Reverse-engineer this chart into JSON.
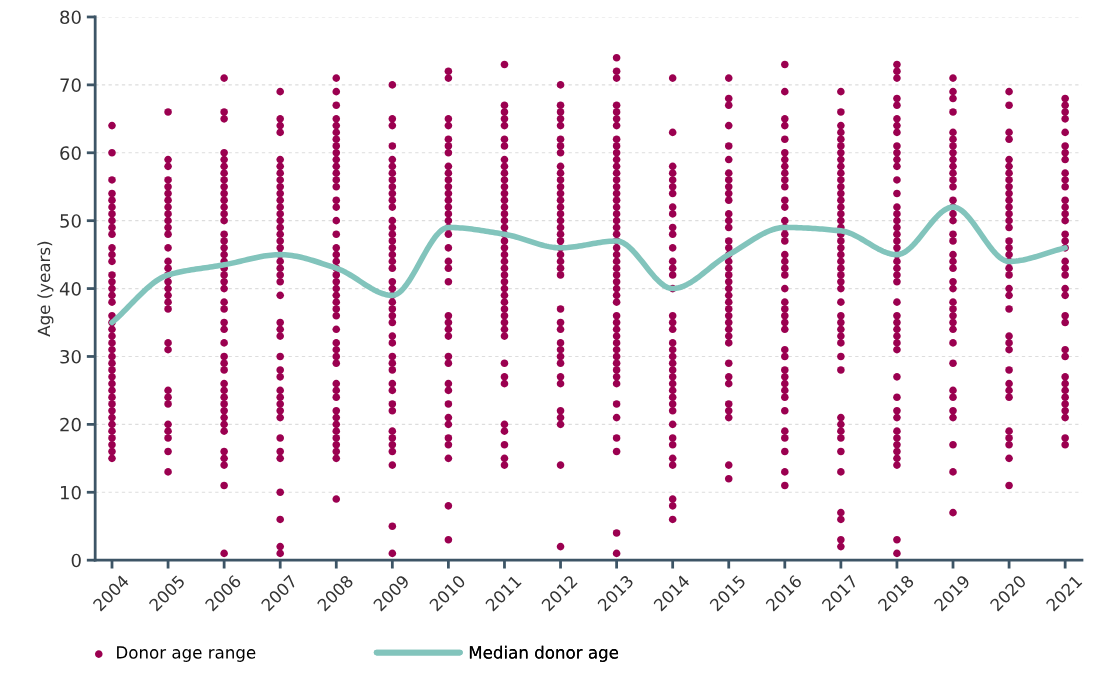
{
  "chart_data": {
    "type": "scatter",
    "ylabel": "Age (years)",
    "xlim": [
      2003.7,
      2021.3
    ],
    "ylim": [
      0,
      80
    ],
    "xticks": [
      2004,
      2005,
      2006,
      2007,
      2008,
      2009,
      2010,
      2011,
      2012,
      2013,
      2014,
      2015,
      2016,
      2017,
      2018,
      2019,
      2020,
      2021
    ],
    "yticks": [
      0,
      10,
      20,
      30,
      40,
      50,
      60,
      70,
      80
    ],
    "grid": "y",
    "legend": "bottom",
    "series": [
      {
        "name": "Donor age range",
        "marker": "circle",
        "color": "#9b0050",
        "x": [
          2004,
          2004,
          2004,
          2004,
          2004,
          2004,
          2004,
          2004,
          2004,
          2004,
          2004,
          2004,
          2004,
          2004,
          2004,
          2004,
          2004,
          2004,
          2004,
          2004,
          2004,
          2004,
          2004,
          2004,
          2004,
          2004,
          2004,
          2004,
          2004,
          2004,
          2004,
          2004,
          2004,
          2004,
          2004,
          2004,
          2004,
          2004,
          2004,
          2004,
          2005,
          2005,
          2005,
          2005,
          2005,
          2005,
          2005,
          2005,
          2005,
          2005,
          2005,
          2005,
          2005,
          2005,
          2005,
          2005,
          2005,
          2005,
          2005,
          2005,
          2005,
          2005,
          2005,
          2005,
          2005,
          2005,
          2005,
          2005,
          2005,
          2005,
          2005,
          2006,
          2006,
          2006,
          2006,
          2006,
          2006,
          2006,
          2006,
          2006,
          2006,
          2006,
          2006,
          2006,
          2006,
          2006,
          2006,
          2006,
          2006,
          2006,
          2006,
          2006,
          2006,
          2006,
          2006,
          2006,
          2006,
          2006,
          2006,
          2006,
          2006,
          2006,
          2006,
          2006,
          2006,
          2006,
          2006,
          2006,
          2006,
          2006,
          2006,
          2006,
          2006,
          2006,
          2006,
          2007,
          2007,
          2007,
          2007,
          2007,
          2007,
          2007,
          2007,
          2007,
          2007,
          2007,
          2007,
          2007,
          2007,
          2007,
          2007,
          2007,
          2007,
          2007,
          2007,
          2007,
          2007,
          2007,
          2007,
          2007,
          2007,
          2007,
          2007,
          2007,
          2007,
          2007,
          2007,
          2007,
          2007,
          2007,
          2007,
          2007,
          2007,
          2007,
          2007,
          2007,
          2007,
          2008,
          2008,
          2008,
          2008,
          2008,
          2008,
          2008,
          2008,
          2008,
          2008,
          2008,
          2008,
          2008,
          2008,
          2008,
          2008,
          2008,
          2008,
          2008,
          2008,
          2008,
          2008,
          2008,
          2008,
          2008,
          2008,
          2008,
          2008,
          2008,
          2008,
          2008,
          2008,
          2008,
          2008,
          2008,
          2008,
          2008,
          2008,
          2008,
          2008,
          2008,
          2008,
          2008,
          2008,
          2008,
          2008,
          2009,
          2009,
          2009,
          2009,
          2009,
          2009,
          2009,
          2009,
          2009,
          2009,
          2009,
          2009,
          2009,
          2009,
          2009,
          2009,
          2009,
          2009,
          2009,
          2009,
          2009,
          2009,
          2009,
          2009,
          2009,
          2009,
          2009,
          2009,
          2009,
          2009,
          2009,
          2009,
          2009,
          2009,
          2009,
          2009,
          2009,
          2009,
          2009,
          2009,
          2009,
          2009,
          2009,
          2010,
          2010,
          2010,
          2010,
          2010,
          2010,
          2010,
          2010,
          2010,
          2010,
          2010,
          2010,
          2010,
          2010,
          2010,
          2010,
          2010,
          2010,
          2010,
          2010,
          2010,
          2010,
          2010,
          2010,
          2010,
          2010,
          2010,
          2010,
          2010,
          2010,
          2010,
          2010,
          2010,
          2010,
          2010,
          2010,
          2010,
          2010,
          2011,
          2011,
          2011,
          2011,
          2011,
          2011,
          2011,
          2011,
          2011,
          2011,
          2011,
          2011,
          2011,
          2011,
          2011,
          2011,
          2011,
          2011,
          2011,
          2011,
          2011,
          2011,
          2011,
          2011,
          2011,
          2011,
          2011,
          2011,
          2011,
          2011,
          2011,
          2011,
          2011,
          2011,
          2011,
          2011,
          2011,
          2011,
          2011,
          2011,
          2011,
          2011,
          2012,
          2012,
          2012,
          2012,
          2012,
          2012,
          2012,
          2012,
          2012,
          2012,
          2012,
          2012,
          2012,
          2012,
          2012,
          2012,
          2012,
          2012,
          2012,
          2012,
          2012,
          2012,
          2012,
          2012,
          2012,
          2012,
          2012,
          2012,
          2012,
          2012,
          2012,
          2012,
          2012,
          2012,
          2012,
          2012,
          2012,
          2012,
          2012,
          2013,
          2013,
          2013,
          2013,
          2013,
          2013,
          2013,
          2013,
          2013,
          2013,
          2013,
          2013,
          2013,
          2013,
          2013,
          2013,
          2013,
          2013,
          2013,
          2013,
          2013,
          2013,
          2013,
          2013,
          2013,
          2013,
          2013,
          2013,
          2013,
          2013,
          2013,
          2013,
          2013,
          2013,
          2013,
          2013,
          2013,
          2013,
          2013,
          2013,
          2013,
          2013,
          2013,
          2013,
          2013,
          2013,
          2013,
          2013,
          2013,
          2014,
          2014,
          2014,
          2014,
          2014,
          2014,
          2014,
          2014,
          2014,
          2014,
          2014,
          2014,
          2014,
          2014,
          2014,
          2014,
          2014,
          2014,
          2014,
          2014,
          2014,
          2014,
          2014,
          2014,
          2014,
          2014,
          2014,
          2014,
          2014,
          2014,
          2014,
          2014,
          2014,
          2014,
          2014,
          2014,
          2014,
          2014,
          2015,
          2015,
          2015,
          2015,
          2015,
          2015,
          2015,
          2015,
          2015,
          2015,
          2015,
          2015,
          2015,
          2015,
          2015,
          2015,
          2015,
          2015,
          2015,
          2015,
          2015,
          2015,
          2015,
          2015,
          2015,
          2015,
          2015,
          2015,
          2015,
          2015,
          2015,
          2015,
          2015,
          2015,
          2015,
          2015,
          2015,
          2015,
          2016,
          2016,
          2016,
          2016,
          2016,
          2016,
          2016,
          2016,
          2016,
          2016,
          2016,
          2016,
          2016,
          2016,
          2016,
          2016,
          2016,
          2016,
          2016,
          2016,
          2016,
          2016,
          2016,
          2016,
          2016,
          2016,
          2016,
          2016,
          2016,
          2016,
          2016,
          2016,
          2016,
          2016,
          2016,
          2016,
          2016,
          2016,
          2016,
          2016,
          2017,
          2017,
          2017,
          2017,
          2017,
          2017,
          2017,
          2017,
          2017,
          2017,
          2017,
          2017,
          2017,
          2017,
          2017,
          2017,
          2017,
          2017,
          2017,
          2017,
          2017,
          2017,
          2017,
          2017,
          2017,
          2017,
          2017,
          2017,
          2017,
          2017,
          2017,
          2017,
          2017,
          2017,
          2017,
          2017,
          2017,
          2017,
          2017,
          2017,
          2017,
          2017,
          2017,
          2017,
          2017,
          2018,
          2018,
          2018,
          2018,
          2018,
          2018,
          2018,
          2018,
          2018,
          2018,
          2018,
          2018,
          2018,
          2018,
          2018,
          2018,
          2018,
          2018,
          2018,
          2018,
          2018,
          2018,
          2018,
          2018,
          2018,
          2018,
          2018,
          2018,
          2018,
          2018,
          2018,
          2018,
          2018,
          2018,
          2018,
          2018,
          2018,
          2018,
          2018,
          2018,
          2018,
          2018,
          2018,
          2018,
          2018,
          2019,
          2019,
          2019,
          2019,
          2019,
          2019,
          2019,
          2019,
          2019,
          2019,
          2019,
          2019,
          2019,
          2019,
          2019,
          2019,
          2019,
          2019,
          2019,
          2019,
          2019,
          2019,
          2019,
          2019,
          2019,
          2019,
          2019,
          2019,
          2019,
          2019,
          2019,
          2019,
          2019,
          2019,
          2019,
          2019,
          2019,
          2019,
          2020,
          2020,
          2020,
          2020,
          2020,
          2020,
          2020,
          2020,
          2020,
          2020,
          2020,
          2020,
          2020,
          2020,
          2020,
          2020,
          2020,
          2020,
          2020,
          2020,
          2020,
          2020,
          2020,
          2020,
          2020,
          2020,
          2020,
          2020,
          2020,
          2020,
          2020,
          2020,
          2020,
          2020,
          2020,
          2020,
          2021,
          2021,
          2021,
          2021,
          2021,
          2021,
          2021,
          2021,
          2021,
          2021,
          2021,
          2021,
          2021,
          2021,
          2021,
          2021,
          2021,
          2021,
          2021,
          2021,
          2021,
          2021,
          2021,
          2021,
          2021,
          2021,
          2021,
          2021,
          2021,
          2021,
          2021,
          2021,
          2021,
          2021,
          2021,
          2021
        ],
        "values": [
          64,
          60,
          56,
          54,
          53,
          52,
          51,
          50,
          49,
          48,
          46,
          45,
          44,
          42,
          41,
          40,
          39,
          38,
          36,
          35,
          34,
          33,
          32,
          31,
          30,
          29,
          28,
          27,
          26,
          25,
          24,
          23,
          22,
          21,
          20,
          19,
          18,
          17,
          16,
          15,
          66,
          59,
          58,
          56,
          55,
          54,
          53,
          52,
          51,
          50,
          49,
          48,
          46,
          44,
          43,
          42,
          41,
          40,
          39,
          38,
          37,
          32,
          31,
          25,
          24,
          23,
          20,
          19,
          18,
          16,
          13,
          71,
          66,
          65,
          60,
          59,
          58,
          57,
          56,
          55,
          54,
          53,
          52,
          51,
          50,
          48,
          47,
          46,
          45,
          44,
          43,
          42,
          41,
          40,
          38,
          37,
          35,
          34,
          32,
          30,
          29,
          28,
          26,
          25,
          24,
          23,
          22,
          21,
          20,
          19,
          16,
          15,
          14,
          11,
          1,
          69,
          65,
          64,
          63,
          59,
          58,
          57,
          56,
          55,
          54,
          53,
          52,
          51,
          50,
          49,
          48,
          47,
          46,
          45,
          44,
          43,
          42,
          41,
          39,
          35,
          34,
          33,
          30,
          28,
          27,
          25,
          24,
          23,
          22,
          21,
          18,
          16,
          15,
          10,
          6,
          2,
          1,
          71,
          69,
          67,
          65,
          64,
          63,
          62,
          61,
          60,
          59,
          58,
          57,
          56,
          55,
          53,
          52,
          50,
          48,
          46,
          45,
          44,
          43,
          42,
          41,
          40,
          39,
          38,
          37,
          36,
          34,
          32,
          31,
          30,
          29,
          26,
          25,
          24,
          22,
          21,
          20,
          19,
          18,
          17,
          16,
          15,
          9,
          70,
          65,
          64,
          61,
          59,
          58,
          57,
          56,
          55,
          54,
          53,
          52,
          50,
          49,
          48,
          47,
          46,
          45,
          44,
          43,
          41,
          40,
          39,
          38,
          37,
          36,
          35,
          33,
          32,
          30,
          29,
          28,
          26,
          25,
          23,
          22,
          19,
          18,
          17,
          16,
          14,
          5,
          1,
          72,
          71,
          65,
          64,
          62,
          61,
          60,
          58,
          57,
          56,
          55,
          54,
          53,
          52,
          51,
          50,
          49,
          48,
          46,
          44,
          43,
          41,
          36,
          35,
          34,
          33,
          30,
          29,
          26,
          25,
          23,
          21,
          20,
          18,
          17,
          15,
          8,
          3,
          73,
          67,
          66,
          65,
          64,
          62,
          61,
          59,
          58,
          57,
          56,
          55,
          54,
          53,
          52,
          51,
          50,
          49,
          48,
          47,
          46,
          45,
          44,
          43,
          42,
          41,
          40,
          39,
          38,
          37,
          36,
          35,
          34,
          33,
          29,
          27,
          26,
          20,
          19,
          17,
          15,
          14,
          70,
          67,
          66,
          65,
          64,
          62,
          61,
          60,
          58,
          57,
          56,
          55,
          54,
          53,
          52,
          51,
          50,
          49,
          48,
          47,
          46,
          45,
          44,
          43,
          42,
          37,
          35,
          34,
          32,
          31,
          30,
          29,
          27,
          26,
          22,
          21,
          20,
          14,
          2,
          74,
          72,
          71,
          67,
          66,
          65,
          64,
          62,
          61,
          60,
          59,
          58,
          57,
          56,
          55,
          54,
          53,
          52,
          51,
          50,
          49,
          48,
          47,
          46,
          45,
          44,
          43,
          42,
          41,
          40,
          39,
          38,
          36,
          35,
          34,
          33,
          32,
          31,
          30,
          29,
          28,
          27,
          26,
          23,
          21,
          18,
          16,
          4,
          1,
          71,
          63,
          58,
          57,
          56,
          55,
          54,
          52,
          51,
          49,
          48,
          46,
          44,
          43,
          42,
          40,
          36,
          35,
          34,
          32,
          31,
          30,
          29,
          28,
          27,
          26,
          25,
          24,
          23,
          22,
          20,
          18,
          17,
          15,
          14,
          9,
          8,
          6,
          71,
          68,
          67,
          64,
          61,
          59,
          57,
          56,
          55,
          54,
          53,
          51,
          50,
          49,
          47,
          46,
          45,
          44,
          43,
          42,
          41,
          40,
          39,
          38,
          37,
          36,
          35,
          34,
          33,
          32,
          29,
          27,
          26,
          23,
          22,
          21,
          14,
          12,
          73,
          69,
          65,
          64,
          62,
          60,
          59,
          58,
          57,
          56,
          55,
          53,
          52,
          50,
          49,
          48,
          47,
          45,
          44,
          43,
          42,
          40,
          38,
          37,
          36,
          35,
          34,
          31,
          30,
          28,
          27,
          26,
          25,
          24,
          22,
          19,
          18,
          16,
          13,
          11,
          69,
          66,
          64,
          63,
          62,
          61,
          60,
          59,
          58,
          57,
          56,
          55,
          54,
          53,
          52,
          51,
          50,
          49,
          48,
          47,
          46,
          45,
          44,
          43,
          42,
          41,
          40,
          38,
          36,
          35,
          34,
          33,
          32,
          30,
          28,
          21,
          20,
          19,
          18,
          16,
          13,
          7,
          6,
          3,
          2,
          73,
          72,
          71,
          68,
          67,
          65,
          64,
          63,
          61,
          60,
          59,
          58,
          56,
          54,
          52,
          51,
          50,
          49,
          48,
          47,
          46,
          45,
          44,
          43,
          42,
          41,
          38,
          36,
          35,
          34,
          33,
          32,
          31,
          27,
          24,
          22,
          21,
          19,
          18,
          17,
          16,
          15,
          14,
          3,
          1,
          71,
          69,
          68,
          66,
          63,
          62,
          61,
          60,
          59,
          58,
          57,
          56,
          55,
          53,
          52,
          51,
          50,
          48,
          47,
          45,
          44,
          43,
          41,
          40,
          38,
          37,
          36,
          35,
          34,
          32,
          29,
          25,
          24,
          22,
          21,
          17,
          13,
          7,
          69,
          67,
          63,
          62,
          59,
          58,
          57,
          56,
          55,
          54,
          53,
          52,
          51,
          50,
          49,
          47,
          46,
          45,
          44,
          43,
          42,
          40,
          39,
          37,
          33,
          32,
          31,
          28,
          26,
          25,
          24,
          19,
          18,
          17,
          15,
          11,
          68,
          67,
          66,
          65,
          63,
          61,
          60,
          59,
          57,
          56,
          55,
          53,
          52,
          51,
          50,
          48,
          47,
          46,
          44,
          43,
          42,
          40,
          39,
          36,
          35,
          31,
          30,
          27,
          26,
          25,
          24,
          23,
          22,
          21,
          18,
          17
        ]
      },
      {
        "name": "Median donor age",
        "type": "line",
        "marker": "none",
        "line_style": "solid",
        "color": "#82c4bc",
        "x": [
          2004,
          2005,
          2006,
          2007,
          2008,
          2009,
          2010,
          2011,
          2012,
          2013,
          2014,
          2015,
          2016,
          2017,
          2018,
          2019,
          2020,
          2021
        ],
        "values": [
          35,
          42,
          43.5,
          45,
          43,
          39,
          49,
          48,
          46,
          47,
          40,
          45,
          49,
          48.5,
          45,
          52,
          44,
          46
        ]
      }
    ]
  }
}
